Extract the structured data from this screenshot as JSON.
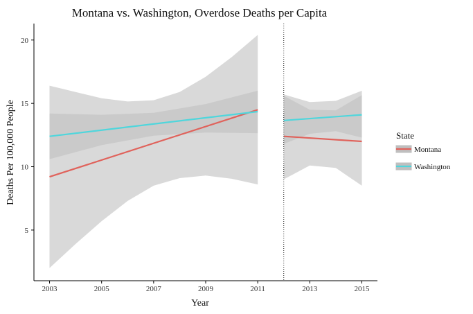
{
  "chart_data": {
    "type": "line",
    "title": "Montana vs. Washington, Overdose Deaths per Capita",
    "xlabel": "Year",
    "ylabel": "Deaths Per 100,000 People",
    "xlim": [
      2002.4,
      2015.6
    ],
    "ylim": [
      1.0,
      21.3
    ],
    "x_ticks": [
      2003,
      2005,
      2007,
      2009,
      2011,
      2013,
      2015
    ],
    "y_ticks": [
      5,
      10,
      15,
      20
    ],
    "grid": false,
    "reference_line": {
      "x": 2012,
      "style": "dotted"
    },
    "legend": {
      "title": "State",
      "position": "right",
      "entries": [
        "Montana",
        "Washington"
      ]
    },
    "series": [
      {
        "name": "Montana",
        "color": "#e0625b",
        "segments": [
          {
            "x": [
              2003,
              2011
            ],
            "y": [
              9.2,
              14.5
            ],
            "band_x": [
              2003,
              2004,
              2005,
              2006,
              2007,
              2008,
              2009,
              2010,
              2011
            ],
            "band_lower": [
              2.0,
              3.9,
              5.7,
              7.3,
              8.5,
              9.1,
              9.3,
              9.05,
              8.6
            ],
            "band_upper": [
              16.4,
              15.9,
              15.4,
              15.15,
              15.25,
              15.9,
              17.1,
              18.65,
              20.4
            ]
          },
          {
            "x": [
              2012,
              2015
            ],
            "y": [
              12.4,
              12.0
            ],
            "band_x": [
              2012,
              2013,
              2014,
              2015
            ],
            "band_lower": [
              9.0,
              10.1,
              9.9,
              8.5
            ],
            "band_upper": [
              15.7,
              15.1,
              15.2,
              16.0
            ]
          }
        ]
      },
      {
        "name": "Washington",
        "color": "#4fd6dc",
        "segments": [
          {
            "x": [
              2003,
              2011
            ],
            "y": [
              12.4,
              14.35
            ],
            "band_x": [
              2003,
              2005,
              2007,
              2009,
              2011
            ],
            "band_lower": [
              10.6,
              11.7,
              12.45,
              12.7,
              12.65
            ],
            "band_upper": [
              14.2,
              14.1,
              14.25,
              14.95,
              16.0
            ]
          },
          {
            "x": [
              2012,
              2015
            ],
            "y": [
              13.65,
              14.1
            ],
            "band_x": [
              2012,
              2013,
              2014,
              2015
            ],
            "band_lower": [
              11.8,
              12.6,
              12.8,
              12.3
            ],
            "band_upper": [
              15.6,
              14.5,
              14.45,
              15.65
            ]
          }
        ]
      }
    ],
    "band_color": "#bfbfbf"
  }
}
